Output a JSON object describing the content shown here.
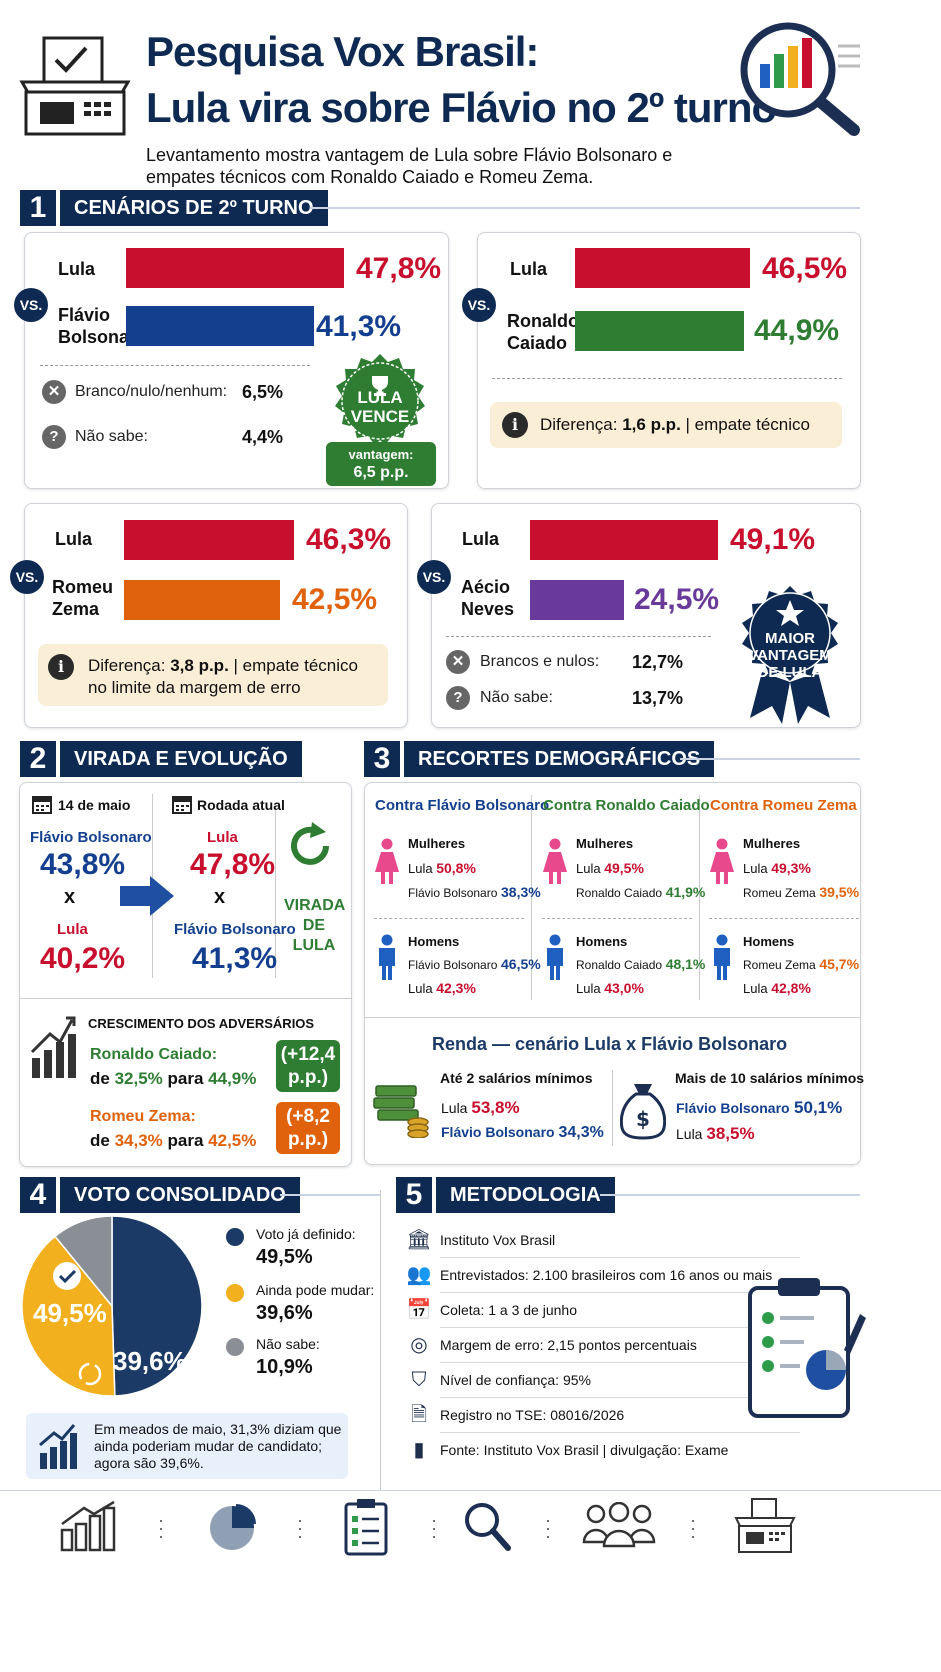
{
  "header": {
    "title_line1": "Pesquisa Vox Brasil:",
    "title_line2": "Lula vira sobre Flávio no 2º turno",
    "subtitle_line1": "Levantamento mostra vantagem de Lula sobre Flávio Bolsonaro e",
    "subtitle_line2": "empates técnicos com Ronaldo Caiado e Romeu Zema."
  },
  "section1": {
    "number": "1",
    "title": "CENÁRIOS DE 2º TURNO",
    "vs": "VS."
  },
  "colors": {
    "lula": "#c8102e",
    "flavio": "#143f8f",
    "caiado": "#2e7d32",
    "zema": "#e0620d",
    "aecio": "#6a3a9a",
    "navy": "#0f2a52",
    "gold": "#f2b01e"
  },
  "chart_data": [
    {
      "type": "bar",
      "categories": [
        "Lula",
        "Flávio Bolsonaro"
      ],
      "values": [
        47.8,
        41.3
      ],
      "value_labels": [
        "47,8%",
        "41,3%"
      ],
      "extras": [
        {
          "icon": "x-circle-icon",
          "label": "Branco/nulo/nenhum:",
          "value": "6,5%"
        },
        {
          "icon": "question-circle-icon",
          "label": "Não sabe:",
          "value": "4,4%"
        }
      ],
      "badge": {
        "line1": "LULA",
        "line2": "VENCE",
        "sub1": "vantagem:",
        "sub2": "6,5 p.p."
      }
    },
    {
      "type": "bar",
      "categories": [
        "Lula",
        "Ronaldo Caiado"
      ],
      "values": [
        46.5,
        44.9
      ],
      "value_labels": [
        "46,5%",
        "44,9%"
      ],
      "note": {
        "prefix": "Diferença:",
        "bold": "1,6 p.p.",
        "suffix": "| empate técnico"
      }
    },
    {
      "type": "bar",
      "categories": [
        "Lula",
        "Romeu Zema"
      ],
      "values": [
        46.3,
        42.5
      ],
      "value_labels": [
        "46,3%",
        "42,5%"
      ],
      "note": {
        "prefix": "Diferença:",
        "bold": "3,8 p.p.",
        "suffix": "| empate técnico",
        "line2": "no limite da margem de erro"
      }
    },
    {
      "type": "bar",
      "categories": [
        "Lula",
        "Aécio Neves"
      ],
      "values": [
        49.1,
        24.5
      ],
      "value_labels": [
        "49,1%",
        "24,5%"
      ],
      "extras": [
        {
          "icon": "x-circle-icon",
          "label": "Brancos e nulos:",
          "value": "12,7%"
        },
        {
          "icon": "question-circle-icon",
          "label": "Não sabe:",
          "value": "13,7%"
        }
      ],
      "badge": {
        "line1": "MAIOR",
        "line2": "VANTAGEM",
        "line3": "DE LULA"
      }
    },
    {
      "type": "pie",
      "categories": [
        "Voto já definido:",
        "Ainda pode mudar:",
        "Não sabe:"
      ],
      "values": [
        49.5,
        39.6,
        10.9
      ],
      "value_labels": [
        "49,5%",
        "39,6%",
        "10,9%"
      ],
      "colors": [
        "#1c3a66",
        "#f2b01e",
        "#8a8f96"
      ]
    }
  ],
  "names": {
    "lula": "Lula",
    "flavio_l1": "Flávio",
    "flavio_l2": "Bolsonaro",
    "caiado_l1": "Ronaldo",
    "caiado_l2": "Caiado",
    "zema_l1": "Romeu",
    "zema_l2": "Zema",
    "aecio_l1": "Aécio",
    "aecio_l2": "Neves"
  },
  "section2": {
    "number": "2",
    "title": "VIRADA E EVOLUÇÃO",
    "date1": "14 de maio",
    "date2": "Rodada atual",
    "left_top_name": "Flávio Bolsonaro",
    "left_top_value": "43,8%",
    "left_x": "x",
    "left_bottom_name": "Lula",
    "left_bottom_value": "40,2%",
    "right_top_name": "Lula",
    "right_top_value": "47,8%",
    "right_x": "x",
    "right_bottom_name": "Flávio Bolsonaro",
    "right_bottom_value": "41,3%",
    "virada_l1": "VIRADA",
    "virada_l2": "DE LULA",
    "growth_title": "CRESCIMENTO DOS ADVERSÁRIOS",
    "caiado_label": "Ronaldo Caiado:",
    "caiado_de": "de",
    "caiado_from": "32,5%",
    "caiado_para": "para",
    "caiado_to": "44,9%",
    "caiado_pill_l1": "(+12,4",
    "caiado_pill_l2": "p.p.)",
    "zema_label": "Romeu Zema:",
    "zema_de": "de",
    "zema_from": "34,3%",
    "zema_para": "para",
    "zema_to": "42,5%",
    "zema_pill_l1": "(+8,2",
    "zema_pill_l2": "p.p.)"
  },
  "section3": {
    "number": "3",
    "title": "RECORTES DEMOGRÁFICOS",
    "cols": [
      {
        "header": "Contra Flávio Bolsonaro",
        "women": {
          "label": "Mulheres",
          "r1n": "Lula",
          "r1v": "50,8%",
          "r2n": "Flávio Bolsonaro",
          "r2v": "38,3%"
        },
        "men": {
          "label": "Homens",
          "r1n": "Flávio Bolsonaro",
          "r1v": "46,5%",
          "r2n": "Lula",
          "r2v": "42,3%"
        }
      },
      {
        "header": "Contra Ronaldo Caiado",
        "women": {
          "label": "Mulheres",
          "r1n": "Lula",
          "r1v": "49,5%",
          "r2n": "Ronaldo Caiado",
          "r2v": "41,9%"
        },
        "men": {
          "label": "Homens",
          "r1n": "Ronaldo Caiado",
          "r1v": "48,1%",
          "r2n": "Lula",
          "r2v": "43,0%"
        }
      },
      {
        "header": "Contra Romeu Zema",
        "women": {
          "label": "Mulheres",
          "r1n": "Lula",
          "r1v": "49,3%",
          "r2n": "Romeu Zema",
          "r2v": "39,5%"
        },
        "men": {
          "label": "Homens",
          "r1n": "Romeu Zema",
          "r1v": "45,7%",
          "r2n": "Lula",
          "r2v": "42,8%"
        }
      }
    ],
    "renda_title_a": "Renda",
    "renda_title_b": "— cenário Lula x Flávio Bolsonaro",
    "renda_low_title": "Até 2 salários mínimos",
    "renda_low_r1n": "Lula",
    "renda_low_r1v": "53,8%",
    "renda_low_r2n": "Flávio Bolsonaro",
    "renda_low_r2v": "34,3%",
    "renda_high_title": "Mais de 10 salários mínimos",
    "renda_high_r1n": "Flávio Bolsonaro",
    "renda_high_r1v": "50,1%",
    "renda_high_r2n": "Lula",
    "renda_high_r2v": "38,5%"
  },
  "section4": {
    "number": "4",
    "title": "VOTO CONSOLIDADO",
    "note_l1": "Em meados de maio, 31,3% diziam que",
    "note_l2": "ainda poderiam mudar de candidato;",
    "note_l3": "agora são 39,6%."
  },
  "section5": {
    "number": "5",
    "title": "METODOLOGIA",
    "rows": [
      {
        "icon": "institution-icon",
        "text": "Instituto Vox Brasil"
      },
      {
        "icon": "people-icon",
        "text": "Entrevistados: 2.100 brasileiros com 16 anos ou mais"
      },
      {
        "icon": "calendar-icon",
        "text": "Coleta: 1 a 3 de junho"
      },
      {
        "icon": "target-icon",
        "text": "Margem de erro: 2,15 pontos percentuais"
      },
      {
        "icon": "shield-check-icon",
        "text": "Nível de confiança: 95%"
      },
      {
        "icon": "document-icon",
        "text": "Registro no TSE: 08016/2026"
      },
      {
        "icon": "bar-chart-icon",
        "text": "Fonte: Instituto Vox Brasil  |  divulgação: Exame"
      }
    ]
  }
}
